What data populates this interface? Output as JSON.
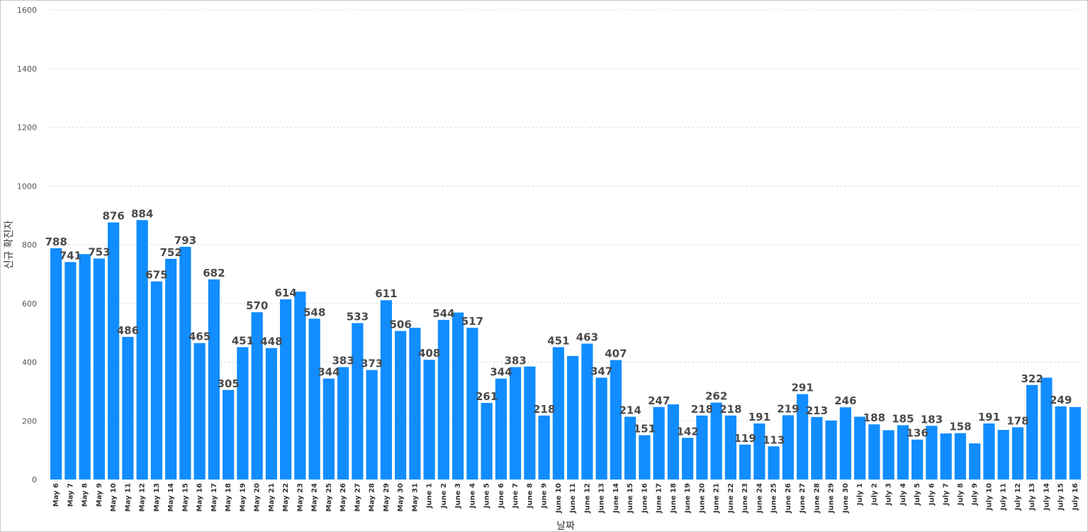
{
  "chart_data": {
    "type": "bar",
    "xlabel": "날짜",
    "ylabel": "신규 확진자",
    "ylim": [
      0,
      1600
    ],
    "yticks": [
      "0",
      "200",
      "400",
      "600",
      "800",
      "1000",
      "1200",
      "1400",
      "1600"
    ],
    "grid": true,
    "bar_color": "#118DFF",
    "categories": [
      "May 6",
      "May 7",
      "May 8",
      "May 9",
      "May 10",
      "May 11",
      "May 12",
      "May 13",
      "May 14",
      "May 15",
      "May 16",
      "May 17",
      "May 18",
      "May 19",
      "May 20",
      "May 21",
      "May 22",
      "May 23",
      "May 24",
      "May 25",
      "May 26",
      "May 27",
      "May 28",
      "May 29",
      "May 30",
      "May 31",
      "June 1",
      "June 2",
      "June 3",
      "June 4",
      "June 5",
      "June 6",
      "June 7",
      "June 8",
      "June 9",
      "June 10",
      "June 11",
      "June 12",
      "June 13",
      "June 14",
      "June 15",
      "June 16",
      "June 17",
      "June 18",
      "June 19",
      "June 20",
      "June 21",
      "June 22",
      "June 23",
      "June 24",
      "June 25",
      "June 26",
      "June 27",
      "June 28",
      "June 29",
      "June 30",
      "July 1",
      "July 2",
      "July 3",
      "July 4",
      "July 5",
      "July 6",
      "July 7",
      "July 8",
      "July 9",
      "July 10",
      "July 11",
      "July 12",
      "July 13",
      "July 14",
      "July 15",
      "July 16"
    ],
    "values": [
      788,
      741,
      768,
      753,
      876,
      486,
      884,
      675,
      752,
      793,
      465,
      682,
      305,
      451,
      570,
      448,
      614,
      640,
      548,
      344,
      383,
      533,
      373,
      611,
      506,
      517,
      408,
      544,
      569,
      517,
      261,
      344,
      383,
      385,
      218,
      451,
      421,
      463,
      347,
      407,
      214,
      151,
      247,
      256,
      142,
      218,
      262,
      218,
      119,
      191,
      113,
      219,
      291,
      213,
      201,
      246,
      214,
      188,
      168,
      185,
      136,
      183,
      157,
      158,
      123,
      191,
      169,
      178,
      322,
      347,
      249,
      247
    ],
    "data_labels": [
      "788",
      "741",
      "",
      "753",
      "876",
      "486",
      "884",
      "675",
      "752",
      "793",
      "465",
      "682",
      "305",
      "451",
      "570",
      "448",
      "614",
      "",
      "548",
      "344",
      "383",
      "533",
      "373",
      "611",
      "506",
      "",
      "408",
      "544",
      "",
      "517",
      "261",
      "344",
      "383",
      "",
      "218",
      "451",
      "",
      "463",
      "347",
      "407",
      "214",
      "151",
      "247",
      "",
      "142",
      "218",
      "262",
      "218",
      "119",
      "191",
      "113",
      "219",
      "291",
      "213",
      "",
      "246",
      "",
      "188",
      "",
      "185",
      "136",
      "183",
      "",
      "158",
      "",
      "191",
      "",
      "178",
      "322",
      "",
      "249",
      ""
    ]
  }
}
